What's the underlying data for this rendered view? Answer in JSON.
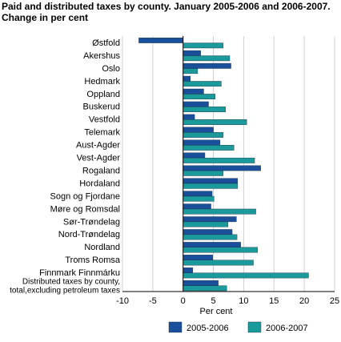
{
  "chart_data": {
    "type": "bar",
    "orientation": "horizontal",
    "title_lines": [
      "Paid and distributed taxes by county. January 2005-2006 and 2006-2007.",
      "Change in per cent"
    ],
    "xlabel": "Per cent",
    "ylabel": "",
    "xlim": [
      -10,
      25
    ],
    "xticks": [
      -10,
      -5,
      0,
      5,
      10,
      15,
      20,
      25
    ],
    "grid": "vertical",
    "legend_position": "bottom",
    "colors": {
      "2005-2006": "#1a4f9c",
      "2006-2007": "#1a9a9a"
    },
    "categories": [
      "Østfold",
      "Akershus",
      "Oslo",
      "Hedmark",
      "Oppland",
      "Buskerud",
      "Vestfold",
      "Telemark",
      "Aust-Agder",
      "Vest-Agder",
      "Rogaland",
      "Hordaland",
      "Sogn og Fjordane",
      "Møre og Romsdal",
      "Sør-Trøndelag",
      "Nord-Trøndelag",
      "Nordland",
      "Troms Romsa",
      "Finnmark Finnmárku",
      "Distributed taxes by county, total,excluding petroleum taxes"
    ],
    "category_lines": [
      [
        "Østfold"
      ],
      [
        "Akershus"
      ],
      [
        "Oslo"
      ],
      [
        "Hedmark"
      ],
      [
        "Oppland"
      ],
      [
        "Buskerud"
      ],
      [
        "Vestfold"
      ],
      [
        "Telemark"
      ],
      [
        "Aust-Agder"
      ],
      [
        "Vest-Agder"
      ],
      [
        "Rogaland"
      ],
      [
        "Hordaland"
      ],
      [
        "Sogn og Fjordane"
      ],
      [
        "Møre og Romsdal"
      ],
      [
        "Sør-Trøndelag"
      ],
      [
        "Nord-Trøndelag"
      ],
      [
        "Nordland"
      ],
      [
        "Troms Romsa"
      ],
      [
        "Finnmark Finnmárku"
      ],
      [
        "Distributed taxes by county,",
        "total,excluding petroleum taxes"
      ]
    ],
    "series": [
      {
        "name": "2005-2006",
        "values": [
          -7.3,
          2.9,
          7.9,
          1.2,
          3.4,
          4.2,
          1.9,
          5.0,
          6.1,
          3.6,
          12.8,
          9.0,
          4.8,
          4.6,
          8.8,
          8.1,
          9.5,
          4.9,
          1.6,
          5.8
        ]
      },
      {
        "name": "2006-2007",
        "values": [
          6.6,
          7.7,
          2.4,
          6.3,
          5.3,
          7.0,
          10.5,
          6.6,
          8.4,
          11.8,
          6.6,
          9.0,
          5.1,
          12.0,
          7.4,
          8.9,
          12.3,
          11.6,
          20.7,
          7.2
        ]
      }
    ]
  }
}
